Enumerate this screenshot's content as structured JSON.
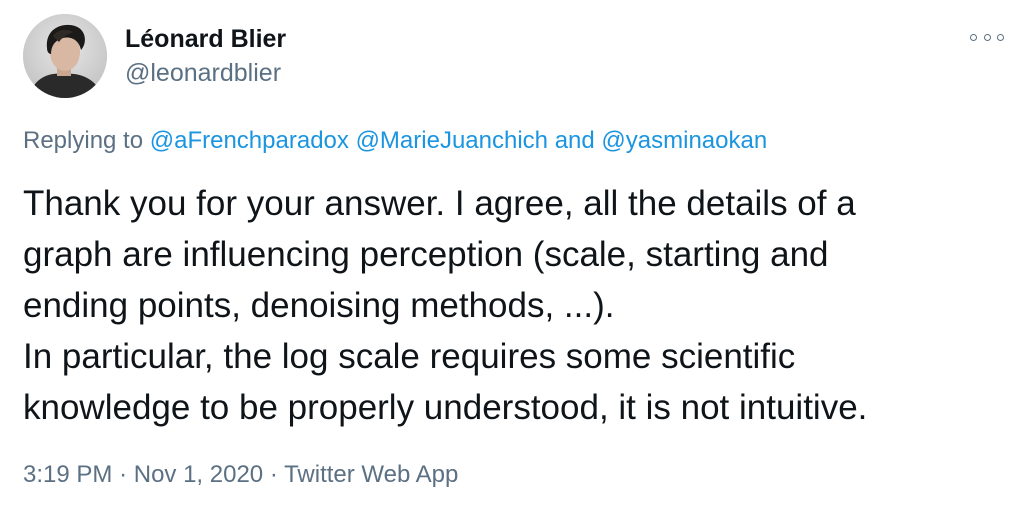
{
  "user": {
    "display_name": "Léonard Blier",
    "handle": "@leonardblier",
    "avatar_icon": "user-avatar-photo"
  },
  "menu": {
    "icon": "more-options-icon"
  },
  "reply": {
    "prefix": "Replying to",
    "mention_1": "@aFrenchparadox",
    "mention_2": "@MarieJuanchich",
    "conjunction": "and",
    "mention_3": "@yasminaokan"
  },
  "tweet": {
    "lines": [
      "Thank you for your answer. I agree, all the details of a",
      "graph are influencing perception (scale, starting and",
      "ending points, denoising methods, ...).",
      "In particular, the log scale requires some scientific",
      "knowledge to be properly understood, it is not intuitive."
    ]
  },
  "meta": {
    "time": "3:19 PM",
    "date": "Nov 1, 2020",
    "separator": "·",
    "source": "Twitter Web App"
  },
  "colors": {
    "text": "#0f1419",
    "secondary": "#5b7083",
    "link": "#1b95e0"
  }
}
